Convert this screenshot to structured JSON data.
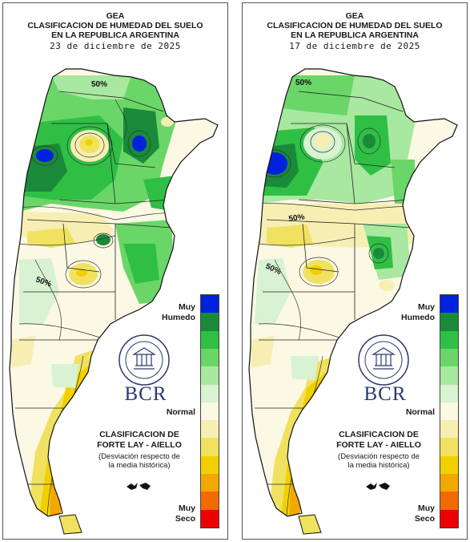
{
  "panels": [
    {
      "header_line1": "GEA",
      "header_line2": "CLASIFICACION DE HUMEDAD DEL SUELO",
      "header_line3": "EN LA REPUBLICA ARGENTINA",
      "date": "23 de diciembre de 2025",
      "contour_labels": [
        "50%",
        "50%"
      ]
    },
    {
      "header_line1": "GEA",
      "header_line2": "CLASIFICACION DE HUMEDAD DEL SUELO",
      "header_line3": "EN LA REPUBLICA ARGENTINA",
      "date": "17 de diciembre de 2025",
      "contour_labels": [
        "50%",
        "50%",
        "50%"
      ]
    }
  ],
  "legend": {
    "top_label_line1": "Muy",
    "top_label_line2": "Humedo",
    "middle_label": "Normal",
    "bottom_label_line1": "Muy",
    "bottom_label_line2": "Seco",
    "colors": [
      "#0022dd",
      "#1a8a3a",
      "#2fbf45",
      "#6ad668",
      "#a8e8a0",
      "#d8f2d2",
      "#fbf8e4",
      "#f7eeb4",
      "#f0e260",
      "#f2d000",
      "#f2a800",
      "#f26a00",
      "#ee0000"
    ]
  },
  "logo": {
    "seal_text": "BOLSA DE COMERCIO DE ROSARIO",
    "brand": "BCR"
  },
  "classification": {
    "line1": "CLASIFICACION DE",
    "line2": "FORTE LAY - AIELLO",
    "note_line1": "(Desviación respecto de",
    "note_line2": "la media histórica)"
  }
}
